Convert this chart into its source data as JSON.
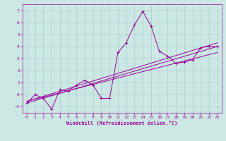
{
  "xlabel": "Windchill (Refroidissement éolien,°C)",
  "background_color": "#cce8e4",
  "grid_color": "#aacccc",
  "line_color": "#990099",
  "xlim": [
    -0.5,
    23.5
  ],
  "ylim": [
    -1.5,
    7.5
  ],
  "xticks": [
    0,
    1,
    2,
    3,
    4,
    5,
    6,
    7,
    8,
    9,
    10,
    11,
    12,
    13,
    14,
    15,
    16,
    17,
    18,
    19,
    20,
    21,
    22,
    23
  ],
  "yticks": [
    -1,
    0,
    1,
    2,
    3,
    4,
    5,
    6,
    7
  ],
  "curve_x": [
    0,
    1,
    2,
    3,
    4,
    5,
    6,
    7,
    8,
    9,
    10,
    11,
    12,
    13,
    14,
    15,
    16,
    17,
    18,
    19,
    20,
    21,
    22,
    23
  ],
  "curve_y": [
    -0.7,
    0.0,
    -0.3,
    -1.2,
    0.4,
    0.3,
    0.8,
    1.2,
    0.8,
    -0.3,
    -0.3,
    3.5,
    4.3,
    5.8,
    6.9,
    5.7,
    3.6,
    3.2,
    2.6,
    2.7,
    2.9,
    3.9,
    4.0,
    4.0
  ],
  "line1_x": [
    0,
    23
  ],
  "line1_y": [
    -0.7,
    4.0
  ],
  "line2_x": [
    0,
    23
  ],
  "line2_y": [
    -0.55,
    3.5
  ],
  "line3_x": [
    0,
    23
  ],
  "line3_y": [
    -0.55,
    4.3
  ]
}
